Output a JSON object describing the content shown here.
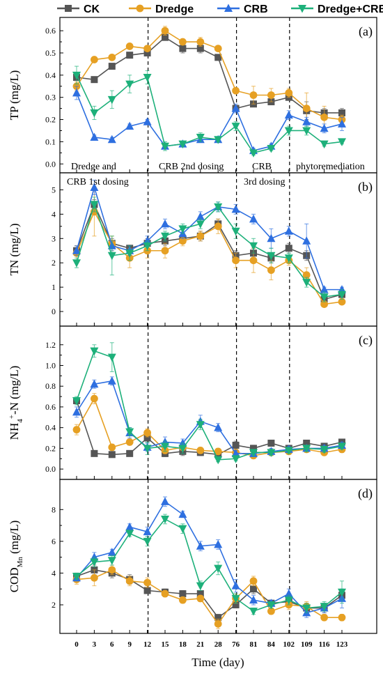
{
  "colors": {
    "CK": "#555555",
    "Dredge": "#E6A023",
    "CRB": "#2E6FE0",
    "Dredge+CRB": "#1DB07A"
  },
  "legend": [
    "CK",
    "Dredge",
    "CRB",
    "Dredge+CRB"
  ],
  "chart_data": {
    "type": "line",
    "xlabel": "Time (day)",
    "categories": [
      "0",
      "3",
      "6",
      "9",
      "12",
      "15",
      "18",
      "21",
      "28",
      "76",
      "81",
      "84",
      "102",
      "109",
      "116",
      "123"
    ],
    "phase_dividers_after": [
      "12",
      "76",
      "102"
    ],
    "phase_labels": {
      "panel_a": [
        "Dredge and",
        "CRB 2nd dosing",
        "CRB",
        "phytoremediation"
      ],
      "panel_b": [
        "CRB 1st dosing",
        "3rd dosing"
      ]
    },
    "panels": [
      {
        "id": "a",
        "label": "(a)",
        "ylabel": "TP (mg/L)",
        "ylim": [
          -0.04,
          0.66
        ],
        "yticks": [
          "0.0",
          "0.1",
          "0.2",
          "0.3",
          "0.4",
          "0.5",
          "0.6"
        ],
        "series": [
          {
            "name": "CK",
            "values": [
              0.39,
              0.38,
              0.44,
              0.49,
              0.5,
              0.57,
              0.52,
              0.52,
              0.48,
              0.25,
              0.27,
              0.28,
              0.3,
              0.24,
              0.23,
              0.23
            ],
            "err": [
              0.01,
              0.01,
              0.01,
              0.01,
              0.01,
              0.01,
              0.02,
              0.02,
              0.01,
              0.01,
              0.01,
              0.01,
              0.01,
              0.04,
              0.02,
              0.02
            ]
          },
          {
            "name": "Dredge",
            "values": [
              0.35,
              0.47,
              0.48,
              0.53,
              0.52,
              0.6,
              0.55,
              0.55,
              0.52,
              0.33,
              0.31,
              0.31,
              0.32,
              0.25,
              0.21,
              0.2
            ],
            "err": [
              0.02,
              0.01,
              0.01,
              0.01,
              0.01,
              0.02,
              0.01,
              0.02,
              0.01,
              0.01,
              0.04,
              0.03,
              0.02,
              0.07,
              0.05,
              0.02
            ]
          },
          {
            "name": "CRB",
            "values": [
              0.32,
              0.12,
              0.11,
              0.17,
              0.19,
              0.08,
              0.09,
              0.11,
              0.11,
              0.25,
              0.06,
              0.08,
              0.22,
              0.19,
              0.16,
              0.18
            ],
            "err": [
              0.03,
              0.01,
              0.01,
              0.01,
              0.01,
              0.01,
              0.01,
              0.01,
              0.01,
              0.02,
              0.01,
              0.01,
              0.02,
              0.02,
              0.02,
              0.03
            ]
          },
          {
            "name": "Dredge+CRB",
            "values": [
              0.4,
              0.23,
              0.29,
              0.36,
              0.39,
              0.08,
              0.09,
              0.12,
              0.11,
              0.17,
              0.05,
              0.07,
              0.15,
              0.15,
              0.09,
              0.1
            ],
            "err": [
              0.04,
              0.03,
              0.04,
              0.04,
              0.03,
              0.02,
              0.01,
              0.02,
              0.01,
              0.02,
              0.01,
              0.01,
              0.02,
              0.02,
              0.01,
              0.01
            ]
          }
        ]
      },
      {
        "id": "b",
        "label": "(b)",
        "ylabel": "TN (mg/L)",
        "ylim": [
          -0.6,
          5.7
        ],
        "yticks": [
          "0",
          "1",
          "2",
          "3",
          "4",
          "5"
        ],
        "series": [
          {
            "name": "CK",
            "values": [
              2.5,
              4.4,
              2.8,
              2.6,
              2.8,
              2.9,
              3.0,
              3.1,
              3.6,
              2.3,
              2.4,
              2.2,
              2.6,
              2.3,
              0.5,
              0.7
            ],
            "err": [
              0.2,
              0.2,
              0.2,
              0.1,
              0.2,
              0.2,
              0.2,
              0.2,
              0.2,
              0.2,
              0.2,
              0.2,
              0.2,
              0.2,
              0.1,
              0.1
            ]
          },
          {
            "name": "Dredge",
            "values": [
              2.4,
              4.1,
              2.8,
              2.2,
              2.5,
              2.5,
              2.9,
              3.1,
              3.5,
              2.1,
              2.1,
              1.7,
              2.1,
              1.5,
              0.3,
              0.4
            ],
            "err": [
              0.3,
              1.0,
              0.3,
              0.4,
              0.3,
              0.3,
              0.2,
              0.2,
              0.3,
              0.3,
              0.5,
              0.4,
              0.2,
              0.3,
              0.1,
              0.1
            ]
          },
          {
            "name": "CRB",
            "values": [
              2.5,
              5.1,
              2.7,
              2.5,
              2.9,
              3.6,
              3.2,
              3.9,
              4.3,
              4.2,
              3.8,
              3.0,
              3.3,
              2.9,
              0.9,
              0.9
            ],
            "err": [
              0.2,
              0.3,
              0.2,
              0.2,
              0.2,
              0.2,
              0.2,
              0.2,
              0.2,
              0.2,
              0.2,
              0.4,
              0.2,
              0.7,
              0.1,
              0.1
            ]
          },
          {
            "name": "Dredge+CRB",
            "values": [
              2.0,
              4.4,
              2.3,
              2.4,
              2.7,
              3.1,
              3.4,
              3.6,
              4.3,
              3.3,
              2.7,
              2.3,
              2.2,
              1.2,
              0.6,
              0.7
            ],
            "err": [
              0.2,
              0.3,
              0.8,
              0.3,
              0.2,
              0.2,
              0.2,
              0.2,
              0.2,
              0.3,
              0.3,
              0.3,
              0.2,
              0.2,
              0.2,
              0.2
            ]
          }
        ]
      },
      {
        "id": "c",
        "label": "(c)",
        "ylabel": "NH4+-N (mg/L)",
        "ylabel_parts": [
          "NH",
          "4",
          "+",
          "-N (mg/L)"
        ],
        "ylim": [
          -0.1,
          1.38
        ],
        "yticks": [
          "0.0",
          "0.2",
          "0.4",
          "0.6",
          "0.8",
          "1.0",
          "1.2"
        ],
        "series": [
          {
            "name": "CK",
            "values": [
              0.66,
              0.15,
              0.14,
              0.15,
              0.3,
              0.15,
              0.17,
              0.16,
              0.14,
              0.23,
              0.2,
              0.25,
              0.2,
              0.25,
              0.22,
              0.26
            ],
            "err": [
              0.03,
              0.02,
              0.02,
              0.02,
              0.05,
              0.03,
              0.04,
              0.03,
              0.02,
              0.04,
              0.03,
              0.03,
              0.03,
              0.03,
              0.03,
              0.03
            ]
          },
          {
            "name": "Dredge",
            "values": [
              0.38,
              0.68,
              0.21,
              0.26,
              0.35,
              0.18,
              0.21,
              0.18,
              0.17,
              0.16,
              0.13,
              0.16,
              0.17,
              0.19,
              0.16,
              0.19
            ],
            "err": [
              0.05,
              0.05,
              0.03,
              0.03,
              0.04,
              0.03,
              0.03,
              0.03,
              0.03,
              0.03,
              0.03,
              0.03,
              0.03,
              0.03,
              0.03,
              0.03
            ]
          },
          {
            "name": "CRB",
            "values": [
              0.55,
              0.82,
              0.85,
              0.35,
              0.21,
              0.26,
              0.25,
              0.46,
              0.4,
              0.15,
              0.15,
              0.17,
              0.19,
              0.2,
              0.2,
              0.23
            ],
            "err": [
              0.05,
              0.04,
              0.04,
              0.05,
              0.04,
              0.05,
              0.04,
              0.06,
              0.04,
              0.03,
              0.03,
              0.03,
              0.03,
              0.03,
              0.03,
              0.03
            ]
          },
          {
            "name": "Dredge+CRB",
            "values": [
              0.66,
              1.14,
              1.08,
              0.36,
              0.2,
              0.22,
              0.2,
              0.43,
              0.09,
              0.1,
              0.16,
              0.16,
              0.18,
              0.2,
              0.19,
              0.22
            ],
            "err": [
              0.04,
              0.06,
              0.14,
              0.04,
              0.06,
              0.05,
              0.05,
              0.05,
              0.02,
              0.02,
              0.03,
              0.03,
              0.03,
              0.03,
              0.03,
              0.03
            ]
          }
        ]
      },
      {
        "id": "d",
        "label": "(d)",
        "ylabel": "CODMn (mg/L)",
        "ylabel_parts": [
          "COD",
          "Mn",
          "",
          " (mg/L)"
        ],
        "ylim": [
          0.2,
          9.9
        ],
        "yticks": [
          "2",
          "4",
          "6",
          "8"
        ],
        "series": [
          {
            "name": "CK",
            "values": [
              3.8,
              4.2,
              4.0,
              3.6,
              2.9,
              2.8,
              2.7,
              2.7,
              1.2,
              2.0,
              3.0,
              2.1,
              2.2,
              1.8,
              1.8,
              2.6
            ],
            "err": [
              0.2,
              0.3,
              0.3,
              0.3,
              0.2,
              0.2,
              0.2,
              0.2,
              0.2,
              0.2,
              0.3,
              0.2,
              0.3,
              0.3,
              0.3,
              0.3
            ]
          },
          {
            "name": "Dredge",
            "values": [
              3.6,
              3.7,
              4.2,
              3.5,
              3.4,
              2.7,
              2.3,
              2.4,
              0.8,
              2.4,
              3.5,
              1.6,
              2.0,
              1.9,
              1.2,
              1.2
            ],
            "err": [
              0.3,
              0.5,
              0.3,
              0.3,
              0.3,
              0.2,
              0.2,
              0.2,
              0.3,
              0.3,
              0.3,
              0.2,
              0.3,
              0.3,
              0.2,
              0.2
            ]
          },
          {
            "name": "CRB",
            "values": [
              3.7,
              5.0,
              5.3,
              6.9,
              6.6,
              8.5,
              7.7,
              5.7,
              5.8,
              3.2,
              2.3,
              2.1,
              2.7,
              1.5,
              1.8,
              2.4
            ],
            "err": [
              0.2,
              0.3,
              0.2,
              0.2,
              0.3,
              0.3,
              0.2,
              0.3,
              0.3,
              0.4,
              0.3,
              0.2,
              0.3,
              0.3,
              0.3,
              0.6
            ]
          },
          {
            "name": "Dredge+CRB",
            "values": [
              3.8,
              4.7,
              4.8,
              6.5,
              6.0,
              7.4,
              6.8,
              3.2,
              4.3,
              2.4,
              1.6,
              2.0,
              2.3,
              1.8,
              1.9,
              2.8
            ],
            "err": [
              0.2,
              0.3,
              0.3,
              0.2,
              0.3,
              0.3,
              0.3,
              0.3,
              0.4,
              0.3,
              0.2,
              0.2,
              0.3,
              0.3,
              0.3,
              0.7
            ]
          }
        ]
      }
    ]
  }
}
